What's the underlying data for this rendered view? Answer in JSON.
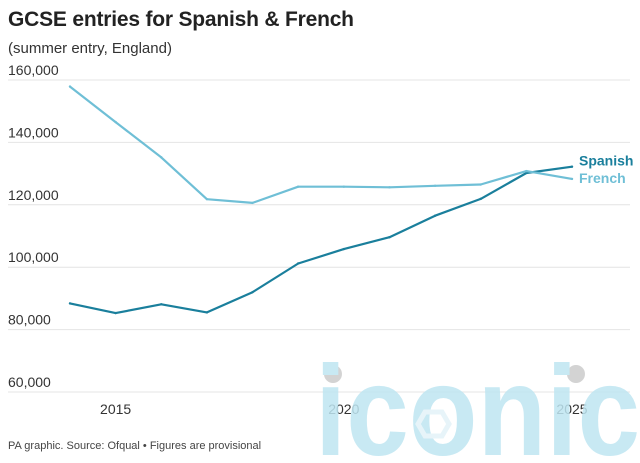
{
  "header": {
    "title": "GCSE entries for Spanish & French",
    "subtitle": "(summer entry, England)"
  },
  "footer": {
    "source": "PA graphic. Source: Ofqual • Figures are provisional"
  },
  "watermark": {
    "text": "iconic",
    "color": "#bfe6f2"
  },
  "chart_data": {
    "type": "line",
    "title": "GCSE entries for Spanish & French",
    "subtitle": "(summer entry, England)",
    "xlabel": "",
    "ylabel": "",
    "x": [
      2014,
      2015,
      2016,
      2017,
      2018,
      2019,
      2020,
      2021,
      2022,
      2023,
      2024,
      2025
    ],
    "xlim": [
      2014,
      2025
    ],
    "ylim": [
      60000,
      160000
    ],
    "x_ticks": [
      2015,
      2020,
      2025
    ],
    "x_tick_labels": [
      "2015",
      "2020",
      "2025"
    ],
    "y_ticks": [
      60000,
      80000,
      100000,
      120000,
      140000,
      160000
    ],
    "y_tick_labels": [
      "60,000",
      "80,000",
      "100,000",
      "120,000",
      "140,000",
      "160,000"
    ],
    "grid": true,
    "legend": "inline-right",
    "series": [
      {
        "name": "Spanish",
        "color": "#1a7f9c",
        "values": [
          88400,
          85300,
          88100,
          85500,
          92000,
          101200,
          105800,
          109600,
          116500,
          121900,
          130200,
          132200
        ]
      },
      {
        "name": "French",
        "color": "#6fbfd6",
        "values": [
          157900,
          146500,
          135200,
          121800,
          120600,
          125800,
          125800,
          125600,
          126100,
          126500,
          130800,
          128300
        ]
      }
    ]
  }
}
